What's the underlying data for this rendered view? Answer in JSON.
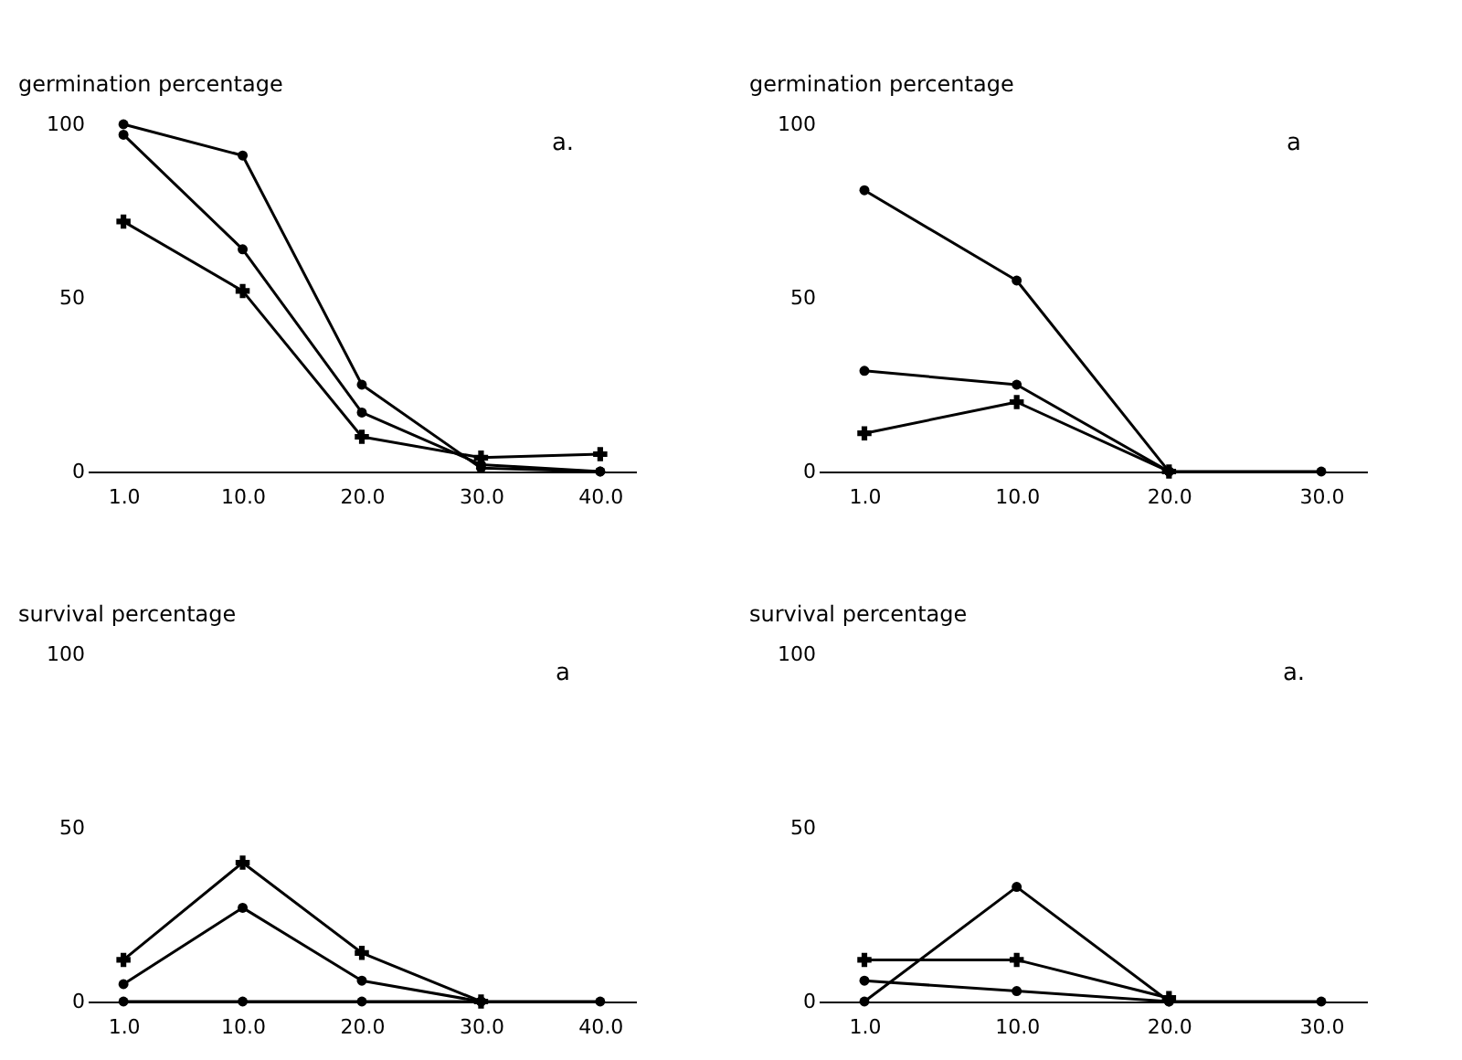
{
  "chart_data": [
    {
      "type": "line",
      "ylabel": "germination percentage",
      "annotations": [
        "a."
      ],
      "categories": [
        "1.0",
        "10.0",
        "20.0",
        "30.0",
        "40.0"
      ],
      "ylim": [
        0,
        100
      ],
      "yticks": [
        0,
        50,
        100
      ],
      "grid": false,
      "series": [
        {
          "color": "#000000",
          "marker": "circle",
          "values": [
            100,
            91,
            25,
            1,
            0
          ]
        },
        {
          "color": "#000000",
          "marker": "circle",
          "values": [
            97,
            64,
            17,
            2,
            0
          ]
        },
        {
          "color": "#000000",
          "marker": "cross",
          "values": [
            72,
            52,
            10,
            4,
            5
          ]
        }
      ]
    },
    {
      "type": "line",
      "ylabel": "germination percentage",
      "annotations": [
        "a"
      ],
      "categories": [
        "1.0",
        "10.0",
        "20.0",
        "30.0"
      ],
      "ylim": [
        0,
        100
      ],
      "yticks": [
        0,
        50,
        100
      ],
      "grid": false,
      "series": [
        {
          "color": "#000000",
          "marker": "circle",
          "values": [
            81,
            55,
            0,
            0
          ]
        },
        {
          "color": "#000000",
          "marker": "circle",
          "values": [
            29,
            25,
            0,
            null
          ]
        },
        {
          "color": "#000000",
          "marker": "cross",
          "values": [
            11,
            20,
            0,
            null
          ]
        }
      ]
    },
    {
      "type": "line",
      "ylabel": "survival percentage",
      "annotations": [
        "a"
      ],
      "categories": [
        "1.0",
        "10.0",
        "20.0",
        "30.0",
        "40.0"
      ],
      "ylim": [
        0,
        100
      ],
      "yticks": [
        0,
        50,
        100
      ],
      "grid": false,
      "series": [
        {
          "color": "#000000",
          "marker": "circle",
          "values": [
            0,
            0,
            0,
            0,
            0
          ]
        },
        {
          "color": "#000000",
          "marker": "circle",
          "values": [
            5,
            27,
            6,
            0,
            null
          ]
        },
        {
          "color": "#000000",
          "marker": "cross",
          "values": [
            12,
            40,
            14,
            0,
            null
          ]
        }
      ]
    },
    {
      "type": "line",
      "ylabel": "survival percentage",
      "annotations": [
        "a."
      ],
      "categories": [
        "1.0",
        "10.0",
        "20.0",
        "30.0"
      ],
      "ylim": [
        0,
        100
      ],
      "yticks": [
        0,
        50,
        100
      ],
      "grid": false,
      "series": [
        {
          "color": "#000000",
          "marker": "circle",
          "values": [
            0,
            33,
            0,
            0
          ]
        },
        {
          "color": "#000000",
          "marker": "circle",
          "values": [
            6,
            3,
            0,
            null
          ]
        },
        {
          "color": "#000000",
          "marker": "cross",
          "values": [
            12,
            12,
            1,
            null
          ]
        }
      ]
    }
  ]
}
